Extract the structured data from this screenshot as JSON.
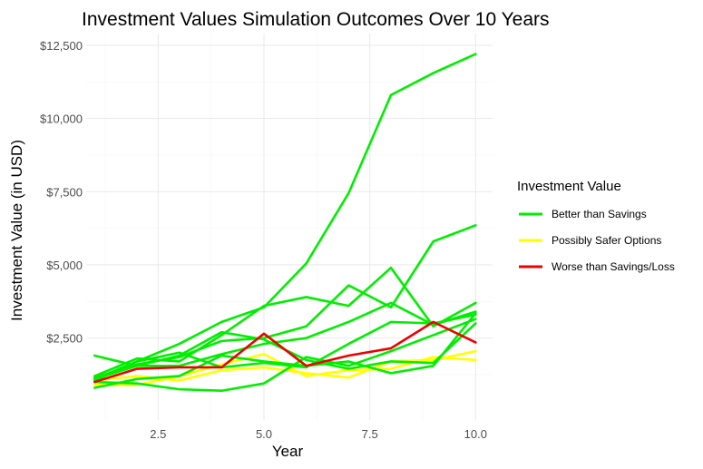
{
  "chart_data": {
    "type": "line",
    "title": "Investment Values Simulation Outcomes Over 10 Years",
    "xlabel": "Year",
    "ylabel": "Investment Value (in USD)",
    "xlim": [
      1,
      10
    ],
    "ylim": [
      0,
      12500
    ],
    "x_ticks": [
      2.5,
      5.0,
      7.5,
      10.0
    ],
    "x_tick_labels": [
      "2.5",
      "5.0",
      "7.5",
      "10.0"
    ],
    "y_ticks": [
      2500,
      5000,
      7500,
      10000,
      12500
    ],
    "y_tick_labels": [
      "$2,500",
      "$5,000",
      "$7,500",
      "$10,000",
      "$12,500"
    ],
    "grid": true,
    "legend": {
      "title": "Investment Value",
      "position": "right",
      "entries": [
        {
          "label": "Better than Savings",
          "color": "#00ee00"
        },
        {
          "label": "Possibly Safer Options",
          "color": "#ffff00"
        },
        {
          "label": "Worse than Savings/Loss",
          "color": "#ee0000"
        }
      ]
    },
    "x": [
      1,
      2,
      3,
      4,
      5,
      6,
      7,
      8,
      9,
      10
    ],
    "series": [
      {
        "group": "Better than Savings",
        "values": [
          1100,
          1700,
          2300,
          3050,
          3550,
          5050,
          7450,
          10800,
          11550,
          12200
        ]
      },
      {
        "group": "Better than Savings",
        "values": [
          1150,
          1600,
          1850,
          2400,
          2500,
          2900,
          4300,
          3550,
          5800,
          6350
        ]
      },
      {
        "group": "Better than Savings",
        "values": [
          1200,
          1800,
          1700,
          2600,
          3600,
          3900,
          3600,
          4900,
          2900,
          3700
        ]
      },
      {
        "group": "Better than Savings",
        "values": [
          1900,
          1550,
          1550,
          1950,
          2300,
          2500,
          3050,
          3700,
          2950,
          3400
        ]
      },
      {
        "group": "Better than Savings",
        "values": [
          1050,
          1700,
          2000,
          1500,
          1650,
          1500,
          2300,
          3050,
          3000,
          3300
        ]
      },
      {
        "group": "Better than Savings",
        "values": [
          800,
          1100,
          1200,
          1900,
          1700,
          1550,
          1700,
          1300,
          1550,
          3350
        ]
      },
      {
        "group": "Better than Savings",
        "values": [
          1000,
          950,
          750,
          700,
          950,
          1850,
          1550,
          2050,
          2600,
          3150
        ]
      },
      {
        "group": "Better than Savings",
        "values": [
          1100,
          1550,
          1900,
          2700,
          2450,
          1750,
          1450,
          1700,
          1650,
          3000
        ]
      },
      {
        "group": "Possibly Safer Options",
        "values": [
          900,
          900,
          1200,
          1600,
          1950,
          1200,
          1400,
          1450,
          1850,
          1750
        ]
      },
      {
        "group": "Possibly Safer Options",
        "values": [
          1050,
          1200,
          1050,
          1400,
          1500,
          1300,
          1150,
          1700,
          1750,
          2050
        ]
      },
      {
        "group": "Worse than Savings/Loss",
        "values": [
          1000,
          1450,
          1500,
          1500,
          2650,
          1550,
          1900,
          2150,
          3050,
          2350
        ]
      }
    ]
  }
}
